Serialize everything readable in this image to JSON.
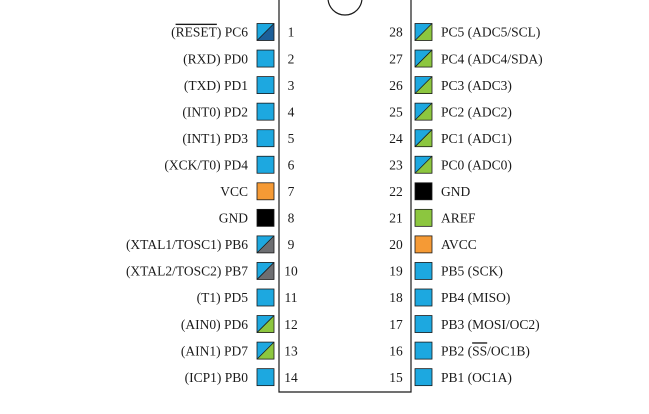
{
  "colors": {
    "blue": "#1da8e0",
    "orange": "#f59a35",
    "black": "#000000",
    "green": "#8cc63f",
    "gray": "#6d6e71",
    "darkblue": "#1c5f99",
    "outline": "#1a1a1a"
  },
  "left_pins": [
    {
      "number": "1",
      "label": "PC6",
      "pre": "(",
      "over": "RESET",
      "post": ") ",
      "colors": [
        "blue",
        "darkblue"
      ]
    },
    {
      "number": "2",
      "label": "(RXD) PD0",
      "colors": [
        "blue"
      ]
    },
    {
      "number": "3",
      "label": "(TXD) PD1",
      "colors": [
        "blue"
      ]
    },
    {
      "number": "4",
      "label": "(INT0) PD2",
      "colors": [
        "blue"
      ]
    },
    {
      "number": "5",
      "label": "(INT1) PD3",
      "colors": [
        "blue"
      ]
    },
    {
      "number": "6",
      "label": "(XCK/T0) PD4",
      "colors": [
        "blue"
      ]
    },
    {
      "number": "7",
      "label": "VCC",
      "colors": [
        "orange"
      ]
    },
    {
      "number": "8",
      "label": "GND",
      "colors": [
        "black"
      ]
    },
    {
      "number": "9",
      "label": "(XTAL1/TOSC1) PB6",
      "colors": [
        "blue",
        "gray"
      ]
    },
    {
      "number": "10",
      "label": "(XTAL2/TOSC2) PB7",
      "colors": [
        "blue",
        "gray"
      ]
    },
    {
      "number": "11",
      "label": "(T1) PD5",
      "colors": [
        "blue"
      ]
    },
    {
      "number": "12",
      "label": "(AIN0) PD6",
      "colors": [
        "blue",
        "green"
      ]
    },
    {
      "number": "13",
      "label": "(AIN1) PD7",
      "colors": [
        "blue",
        "green"
      ]
    },
    {
      "number": "14",
      "label": "(ICP1) PB0",
      "colors": [
        "blue"
      ]
    }
  ],
  "right_pins": [
    {
      "number": "28",
      "label": "PC5 (ADC5/SCL)",
      "colors": [
        "blue",
        "green"
      ]
    },
    {
      "number": "27",
      "label": "PC4 (ADC4/SDA)",
      "colors": [
        "blue",
        "green"
      ]
    },
    {
      "number": "26",
      "label": "PC3 (ADC3)",
      "colors": [
        "blue",
        "green"
      ]
    },
    {
      "number": "25",
      "label": "PC2 (ADC2)",
      "colors": [
        "blue",
        "green"
      ]
    },
    {
      "number": "24",
      "label": "PC1 (ADC1)",
      "colors": [
        "blue",
        "green"
      ]
    },
    {
      "number": "23",
      "label": "PC0 (ADC0)",
      "colors": [
        "blue",
        "green"
      ]
    },
    {
      "number": "22",
      "label": "GND",
      "colors": [
        "black"
      ]
    },
    {
      "number": "21",
      "label": "AREF",
      "colors": [
        "green"
      ]
    },
    {
      "number": "20",
      "label": "AVCC",
      "colors": [
        "orange"
      ]
    },
    {
      "number": "19",
      "label": "PB5 (SCK)",
      "colors": [
        "blue"
      ]
    },
    {
      "number": "18",
      "label": "PB4 (MISO)",
      "colors": [
        "blue"
      ]
    },
    {
      "number": "17",
      "label": "PB3 (MOSI/OC2)",
      "colors": [
        "blue"
      ]
    },
    {
      "number": "16",
      "label": "PB2 (",
      "over": "SS",
      "post": "/OC1B)",
      "colors": [
        "blue"
      ]
    },
    {
      "number": "15",
      "label": "PB1 (OC1A)",
      "colors": [
        "blue"
      ]
    }
  ]
}
